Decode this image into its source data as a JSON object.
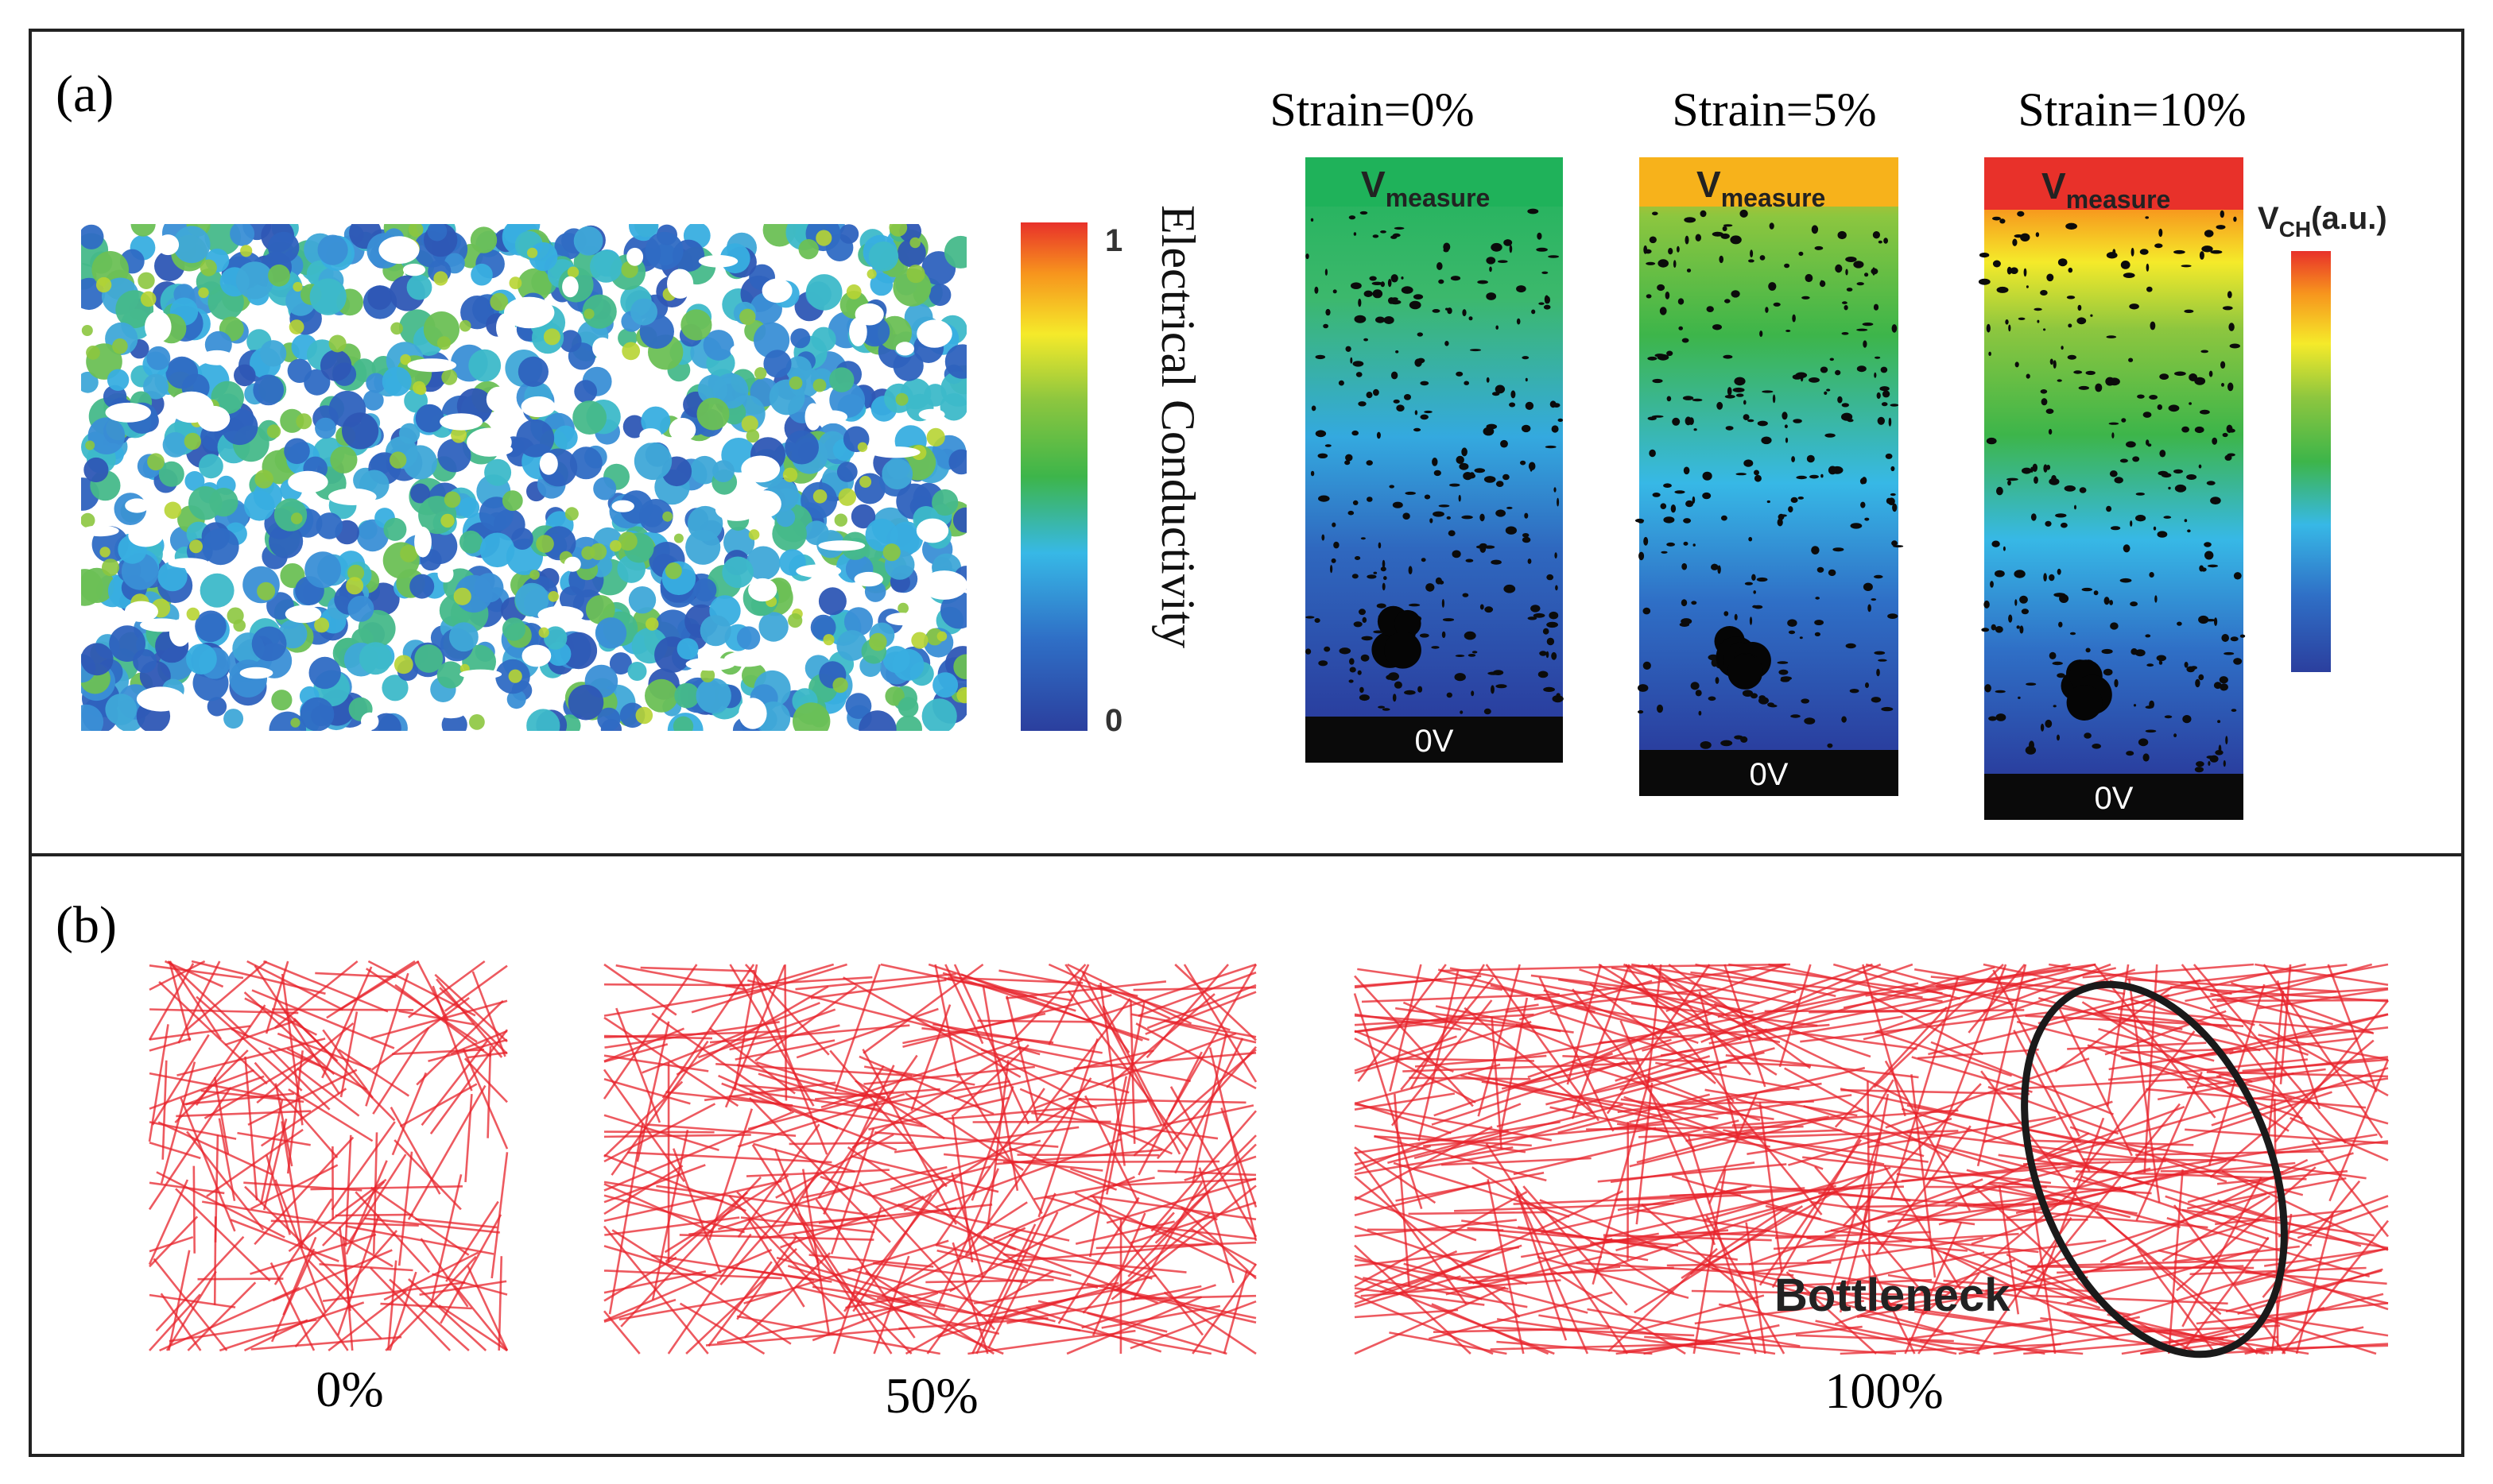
{
  "panel_a": {
    "label": "(a)",
    "colorbar": {
      "max_label": "1",
      "min_label": "0",
      "title": "Electrical  Conductivity"
    },
    "strain_maps": [
      {
        "title": "Strain=0%",
        "top_label": "V",
        "top_sub": "measure",
        "bottom_label": "0V",
        "top_color": "#1fb25a"
      },
      {
        "title": "Strain=5%",
        "top_label": "V",
        "top_sub": "measure",
        "bottom_label": "0V",
        "top_color": "#f7b21b"
      },
      {
        "title": "Strain=10%",
        "top_label": "V",
        "top_sub": "measure",
        "bottom_label": "0V",
        "top_color": "#e8312a"
      }
    ],
    "vch_legend": {
      "label": "V",
      "sub": "CH",
      "unit": "(a.u.)"
    }
  },
  "panel_b": {
    "label": "(b)",
    "networks": [
      {
        "caption": "0%"
      },
      {
        "caption": "50%"
      },
      {
        "caption": "100%",
        "annotation": "Bottleneck"
      }
    ]
  },
  "colors": {
    "wire_red": "#e8232b",
    "frame": "#222222"
  }
}
